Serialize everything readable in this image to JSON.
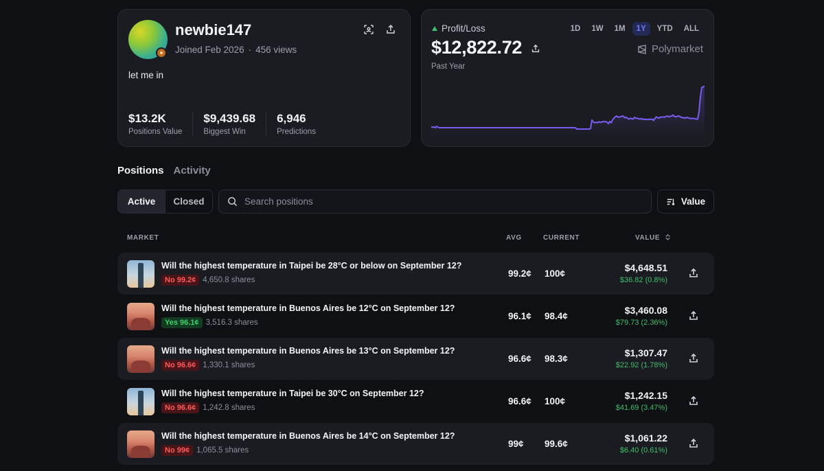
{
  "profile": {
    "username": "newbie147",
    "joined": "Joined Feb 2026",
    "views": "456 views",
    "bio": "let me in",
    "stats": [
      {
        "value": "$13.2K",
        "label": "Positions Value"
      },
      {
        "value": "$9,439.68",
        "label": "Biggest Win"
      },
      {
        "value": "6,946",
        "label": "Predictions"
      }
    ]
  },
  "pnl": {
    "label": "Profit/Loss",
    "value": "$12,822.72",
    "period": "Past Year",
    "ranges": [
      "1D",
      "1W",
      "1M",
      "1Y",
      "YTD",
      "ALL"
    ],
    "active_range": "1Y",
    "brand": "Polymarket",
    "line_color": "#7b5cf0",
    "series": [
      0.05,
      0.04,
      0.05,
      0.03,
      0.06,
      0.04,
      0.03,
      0.03,
      0.03,
      0.03,
      0.03,
      0.03,
      0.03,
      0.03,
      0.03,
      0.03,
      0.03,
      0.03,
      0.03,
      0.03,
      0.03,
      0.03,
      0.03,
      0.03,
      0.03,
      0.03,
      0.03,
      0.03,
      0.03,
      0.03,
      0.03,
      0.03,
      0.03,
      0.03,
      0.03,
      0.03,
      0.03,
      0.03,
      0.03,
      0.03,
      0.03,
      0.03,
      0.03,
      0.03,
      0.03,
      0.03,
      0.03,
      0.03,
      0.03,
      0.03,
      0.03,
      0.03,
      0.03,
      0.03,
      0.03,
      0.03,
      0.03,
      0.03,
      0.03,
      0.03,
      0.03,
      0.03,
      0.03,
      0.03,
      0.03,
      0.03,
      0.03,
      0.03,
      0.03,
      0.03,
      0.03,
      0.03,
      0.03,
      0.03,
      0.03,
      0.03,
      0.03,
      0.03,
      0.03,
      0.03,
      0.03,
      0.03,
      0.03,
      0.03,
      0.03,
      0.03,
      0.03,
      0.03,
      0.03,
      0.03,
      0.03,
      0.03,
      0.03,
      0.03,
      0.03,
      0.03,
      0.03,
      0.03,
      0.03,
      0.03,
      0.03,
      0.03,
      0.03,
      0.03,
      0.03,
      0.03,
      0.0,
      0.0,
      0.0,
      0.0,
      0.0,
      0.0,
      0.0,
      0.0,
      0.0,
      0.0,
      0.01,
      0.2,
      0.16,
      0.14,
      0.15,
      0.14,
      0.16,
      0.15,
      0.15,
      0.17,
      0.16,
      0.17,
      0.15,
      0.12,
      0.17,
      0.14,
      0.2,
      0.24,
      0.27,
      0.29,
      0.26,
      0.27,
      0.27,
      0.29,
      0.28,
      0.25,
      0.26,
      0.24,
      0.22,
      0.24,
      0.23,
      0.22,
      0.26,
      0.24,
      0.24,
      0.23,
      0.22,
      0.23,
      0.22,
      0.21,
      0.22,
      0.21,
      0.21,
      0.22,
      0.21,
      0.22,
      0.19,
      0.24,
      0.27,
      0.25,
      0.24,
      0.27,
      0.26,
      0.27,
      0.26,
      0.28,
      0.29,
      0.27,
      0.28,
      0.29,
      0.31,
      0.28,
      0.27,
      0.28,
      0.29,
      0.28,
      0.26,
      0.25,
      0.25,
      0.24,
      0.26,
      0.25,
      0.24,
      0.23,
      0.24,
      0.23,
      0.23,
      0.22,
      0.22,
      0.38,
      0.72,
      0.92,
      0.93,
      0.95
    ]
  },
  "tabs": {
    "positions": "Positions",
    "activity": "Activity"
  },
  "filters": {
    "active_label": "Active",
    "closed_label": "Closed",
    "search_placeholder": "Search positions",
    "sort_label": "Value"
  },
  "table": {
    "headers": {
      "market": "MARKET",
      "avg": "AVG",
      "current": "CURRENT",
      "value": "VALUE"
    },
    "rows": [
      {
        "image": "taipei",
        "title": "Will the highest temperature in Taipei be 28°C or below on September 12?",
        "side": "No",
        "badge": "No 99.2¢",
        "shares": "4,650.8 shares",
        "avg": "99.2¢",
        "current": "100¢",
        "value": "$4,648.51",
        "change": "$36.82 (0.8%)"
      },
      {
        "image": "buenos-aires",
        "title": "Will the highest temperature in Buenos Aires be 12°C on September 12?",
        "side": "Yes",
        "badge": "Yes 96.1¢",
        "shares": "3,516.3 shares",
        "avg": "96.1¢",
        "current": "98.4¢",
        "value": "$3,460.08",
        "change": "$79.73 (2.36%)"
      },
      {
        "image": "buenos-aires",
        "title": "Will the highest temperature in Buenos Aires be 13°C on September 12?",
        "side": "No",
        "badge": "No 96.6¢",
        "shares": "1,330.1 shares",
        "avg": "96.6¢",
        "current": "98.3¢",
        "value": "$1,307.47",
        "change": "$22.92 (1.78%)"
      },
      {
        "image": "taipei",
        "title": "Will the highest temperature in Taipei be 30°C on September 12?",
        "side": "No",
        "badge": "No 96.6¢",
        "shares": "1,242.8 shares",
        "avg": "96.6¢",
        "current": "100¢",
        "value": "$1,242.15",
        "change": "$41.69 (3.47%)"
      },
      {
        "image": "buenos-aires",
        "title": "Will the highest temperature in Buenos Aires be 14°C on September 12?",
        "side": "No",
        "badge": "No 99¢",
        "shares": "1,065.5 shares",
        "avg": "99¢",
        "current": "99.6¢",
        "value": "$1,061.22",
        "change": "$6.40 (0.61%)"
      }
    ]
  }
}
